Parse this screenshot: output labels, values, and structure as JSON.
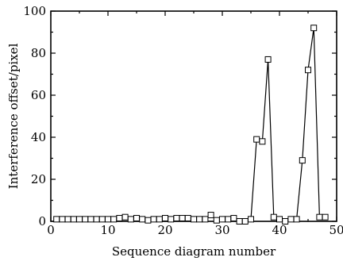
{
  "chart_data": {
    "type": "line",
    "title": "",
    "xlabel": "Sequence diagram number",
    "ylabel": "Interference offset/pixel",
    "xlim": [
      0,
      50
    ],
    "ylim": [
      0,
      100
    ],
    "xticks": [
      "0",
      "10",
      "20",
      "30",
      "40",
      "50"
    ],
    "yticks": [
      "0",
      "20",
      "40",
      "60",
      "80",
      "100"
    ],
    "grid": false,
    "marker": "open-square",
    "line_color": "#000000",
    "series": [
      {
        "x": [
          1,
          2,
          3,
          4,
          5,
          6,
          7,
          8,
          9,
          10,
          11,
          12,
          13,
          14,
          15,
          16,
          17,
          18,
          19,
          20,
          21,
          22,
          23,
          24,
          25,
          26,
          27,
          28,
          29,
          30,
          31,
          32,
          33,
          34,
          35,
          36,
          37,
          38,
          39,
          40,
          41,
          42,
          43,
          44,
          45,
          46,
          47,
          48
        ],
        "y": [
          1,
          1,
          1,
          1,
          1,
          1,
          1,
          1,
          1,
          1,
          1,
          1.5,
          2,
          1,
          1.5,
          1,
          0.5,
          1,
          1,
          1.5,
          1,
          1.5,
          1.5,
          1.5,
          1,
          1,
          1,
          3,
          0.5,
          1,
          1,
          1.5,
          0,
          0,
          1,
          39,
          38,
          77,
          2,
          1,
          0,
          1,
          1,
          29,
          72,
          92,
          2,
          2
        ]
      }
    ]
  }
}
